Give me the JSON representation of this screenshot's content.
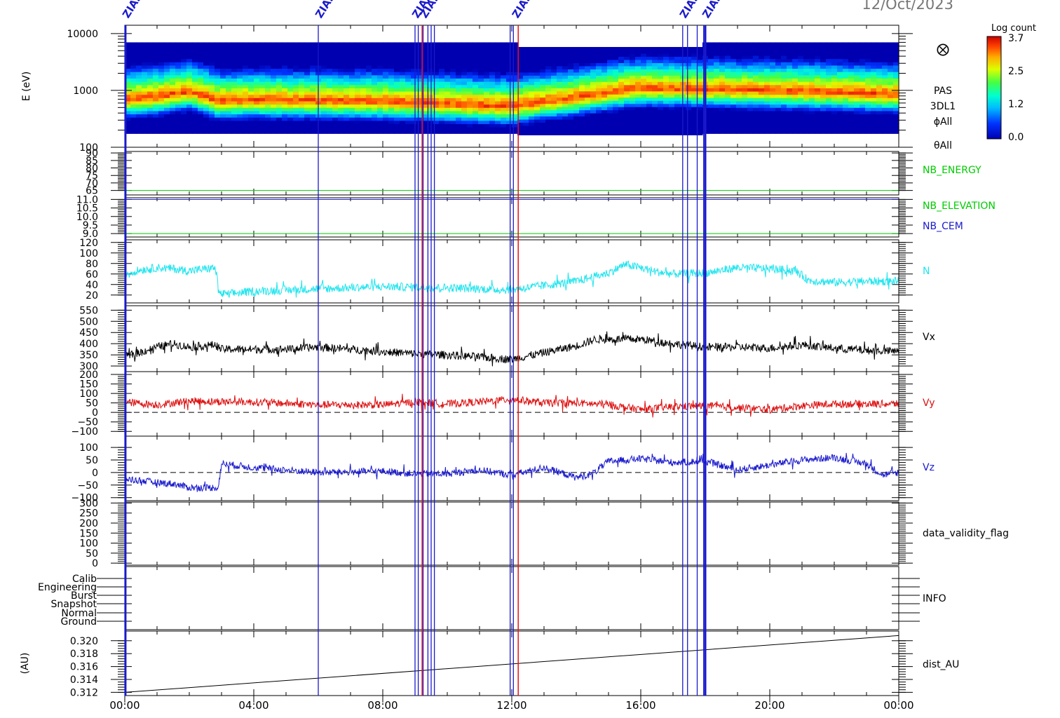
{
  "header": {
    "date": "12/Oct/2023",
    "event_markers": [
      {
        "time": 0.02,
        "label": "ZIAS",
        "color": "#1a1acc"
      },
      {
        "time": 6.0,
        "label": "ZIAS",
        "color": "#1a1acc"
      },
      {
        "time": 9.0,
        "label": "ZIAS",
        "color": "#1a1acc"
      },
      {
        "time": 9.25,
        "label": "ZIAS",
        "color": "#1a1acc"
      },
      {
        "time": 12.1,
        "label": "ZIAS",
        "color": "#1a1acc"
      },
      {
        "time": 17.3,
        "label": "ZIAS",
        "color": "#1a1acc"
      },
      {
        "time": 18.0,
        "label": "ZIAS",
        "color": "#1a1acc"
      }
    ]
  },
  "colorbar": {
    "title": "Log count",
    "ticks": [
      "3.7",
      "2.5",
      "1.2",
      "0.0"
    ]
  },
  "time_axis": {
    "range_hours": [
      0,
      24
    ],
    "tick_labels": [
      "00:00",
      "04:00",
      "08:00",
      "12:00",
      "16:00",
      "20:00",
      "00:00"
    ]
  },
  "vertical_lines": {
    "blue_hours": [
      0.02,
      6.0,
      9.0,
      9.1,
      9.25,
      9.4,
      9.5,
      9.6,
      11.95,
      12.05,
      17.3,
      17.45,
      17.75,
      17.95,
      18.0
    ],
    "red_hours": [
      9.22,
      12.2
    ]
  },
  "chart_data": [
    {
      "type": "heatmap",
      "panel": "pas_spectrogram",
      "ylabel": "E (eV)",
      "yscale": "log",
      "ylim": [
        100,
        14000
      ],
      "yticks": [
        "10000",
        "1000",
        "100"
      ],
      "right_labels": [
        "PAS",
        "3DL1",
        "ϕAll",
        "θAll"
      ],
      "right_symbol": "⨂",
      "colorbar_range": [
        0.0,
        3.7
      ],
      "peak_energy_profile": [
        {
          "t": 0,
          "e": 700
        },
        {
          "t": 1,
          "e": 780
        },
        {
          "t": 2,
          "e": 950
        },
        {
          "t": 2.9,
          "e": 650
        },
        {
          "t": 4,
          "e": 680
        },
        {
          "t": 8,
          "e": 640
        },
        {
          "t": 12,
          "e": 520
        },
        {
          "t": 14,
          "e": 750
        },
        {
          "t": 16,
          "e": 1100
        },
        {
          "t": 20,
          "e": 1000
        },
        {
          "t": 24,
          "e": 850
        }
      ]
    },
    {
      "type": "line",
      "panel": "nb_energy",
      "ylim": [
        62,
        91
      ],
      "yticks": [
        "90",
        "85",
        "80",
        "75",
        "70",
        "65"
      ],
      "series": [
        {
          "name": "NB_ENERGY",
          "color": "#00cc00",
          "constant": 65
        }
      ]
    },
    {
      "type": "line",
      "panel": "nb_elevation_cem",
      "ylim": [
        8.8,
        11.1
      ],
      "yticks": [
        "11.0",
        "10.5",
        "10.0",
        "9.5",
        "9.0"
      ],
      "series": [
        {
          "name": "NB_ELEVATION",
          "color": "#00cc00",
          "constant": 9.0
        },
        {
          "name": "NB_CEM",
          "color": "#1a1acc",
          "constant": 11.0
        }
      ]
    },
    {
      "type": "line",
      "panel": "density",
      "ylim": [
        5,
        125
      ],
      "yticks": [
        "120",
        "100",
        "80",
        "60",
        "40",
        "20"
      ],
      "series": [
        {
          "name": "N",
          "color": "#22e5ee",
          "noise": 8,
          "points": [
            [
              0,
              60
            ],
            [
              0.5,
              68
            ],
            [
              1,
              72
            ],
            [
              1.5,
              70
            ],
            [
              2,
              66
            ],
            [
              2.8,
              72
            ],
            [
              2.95,
              22
            ],
            [
              3.2,
              22
            ],
            [
              4,
              27
            ],
            [
              6,
              32
            ],
            [
              8,
              36
            ],
            [
              10,
              34
            ],
            [
              11.8,
              30
            ],
            [
              12.2,
              32
            ],
            [
              13,
              38
            ],
            [
              14,
              46
            ],
            [
              15,
              62
            ],
            [
              15.5,
              78
            ],
            [
              16,
              72
            ],
            [
              16.5,
              64
            ],
            [
              17,
              60
            ],
            [
              18,
              62
            ],
            [
              19,
              72
            ],
            [
              20,
              70
            ],
            [
              20.8,
              66
            ],
            [
              21.2,
              48
            ],
            [
              22,
              44
            ],
            [
              23,
              46
            ],
            [
              24,
              46
            ]
          ]
        }
      ]
    },
    {
      "type": "line",
      "panel": "vx",
      "ylim": [
        275,
        570
      ],
      "yticks": [
        "550",
        "500",
        "450",
        "400",
        "350",
        "300"
      ],
      "series": [
        {
          "name": "Vx",
          "color": "#000000",
          "noise": 18,
          "points": [
            [
              0,
              340
            ],
            [
              1,
              385
            ],
            [
              1.5,
              400
            ],
            [
              2,
              385
            ],
            [
              2.8,
              395
            ],
            [
              3,
              375
            ],
            [
              5,
              375
            ],
            [
              6,
              385
            ],
            [
              8,
              365
            ],
            [
              9,
              355
            ],
            [
              10,
              350
            ],
            [
              11,
              340
            ],
            [
              12,
              330
            ],
            [
              13,
              360
            ],
            [
              14,
              390
            ],
            [
              14.6,
              420
            ],
            [
              15,
              420
            ],
            [
              16,
              420
            ],
            [
              17,
              400
            ],
            [
              18,
              385
            ],
            [
              19,
              385
            ],
            [
              20,
              380
            ],
            [
              21,
              395
            ],
            [
              22,
              380
            ],
            [
              23,
              370
            ],
            [
              24,
              365
            ]
          ]
        }
      ]
    },
    {
      "type": "line",
      "panel": "vy",
      "ylim": [
        -125,
        215
      ],
      "yticks": [
        "200",
        "150",
        "100",
        "50",
        "0",
        "−50",
        "−100"
      ],
      "zero_line": true,
      "series": [
        {
          "name": "Vy",
          "color": "#dd1111",
          "noise": 20,
          "points": [
            [
              0,
              55
            ],
            [
              1,
              40
            ],
            [
              2,
              60
            ],
            [
              4,
              55
            ],
            [
              6,
              40
            ],
            [
              8,
              40
            ],
            [
              9,
              55
            ],
            [
              10,
              45
            ],
            [
              11,
              55
            ],
            [
              12,
              70
            ],
            [
              13,
              50
            ],
            [
              14,
              50
            ],
            [
              15,
              40
            ],
            [
              16,
              15
            ],
            [
              17,
              30
            ],
            [
              18,
              35
            ],
            [
              19,
              25
            ],
            [
              20,
              15
            ],
            [
              21,
              35
            ],
            [
              22,
              45
            ],
            [
              23,
              45
            ],
            [
              24,
              45
            ]
          ]
        }
      ]
    },
    {
      "type": "line",
      "panel": "vz",
      "ylim": [
        -112,
        145
      ],
      "yticks": [
        "100",
        "50",
        "0",
        "−50",
        "−100"
      ],
      "zero_line": true,
      "series": [
        {
          "name": "Vz",
          "color": "#1a1acc",
          "noise": 14,
          "points": [
            [
              0,
              -25
            ],
            [
              1,
              -40
            ],
            [
              1.5,
              -45
            ],
            [
              2,
              -60
            ],
            [
              2.9,
              -60
            ],
            [
              3,
              35
            ],
            [
              4,
              20
            ],
            [
              6,
              0
            ],
            [
              8,
              5
            ],
            [
              9,
              -5
            ],
            [
              10,
              -5
            ],
            [
              11,
              10
            ],
            [
              12,
              -10
            ],
            [
              13,
              20
            ],
            [
              14,
              -20
            ],
            [
              14.5,
              -5
            ],
            [
              15,
              45
            ],
            [
              16,
              55
            ],
            [
              17,
              40
            ],
            [
              18,
              45
            ],
            [
              19,
              10
            ],
            [
              20,
              30
            ],
            [
              21,
              50
            ],
            [
              22,
              60
            ],
            [
              23,
              35
            ],
            [
              23.5,
              -10
            ],
            [
              24,
              0
            ]
          ]
        }
      ]
    },
    {
      "type": "line",
      "panel": "data_validity_flag",
      "ylim": [
        -10,
        305
      ],
      "yticks": [
        "300",
        "250",
        "200",
        "150",
        "100",
        "50",
        "0"
      ],
      "series": [
        {
          "name": "data_validity_flag",
          "color": "#000000"
        }
      ]
    },
    {
      "type": "line",
      "panel": "info",
      "categories": [
        "Calib",
        "Engineering",
        "Burst",
        "Snapshot",
        "Normal",
        "Ground"
      ],
      "series": [
        {
          "name": "INFO",
          "color": "#000000"
        }
      ]
    },
    {
      "type": "line",
      "panel": "distance",
      "ylabel": "(AU)",
      "ylim": [
        0.3115,
        0.3215
      ],
      "yticks": [
        "0.320",
        "0.318",
        "0.316",
        "0.314",
        "0.312"
      ],
      "series": [
        {
          "name": "dist_AU",
          "color": "#000000",
          "points": [
            [
              0,
              0.312
            ],
            [
              24,
              0.3208
            ]
          ]
        }
      ]
    }
  ]
}
